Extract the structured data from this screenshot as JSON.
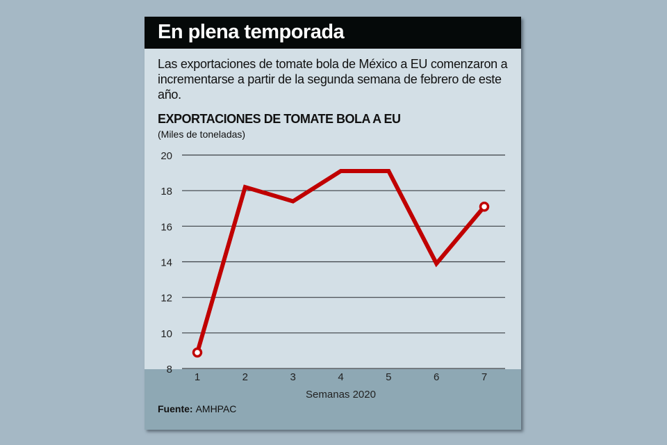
{
  "header": {
    "title": "En plena temporada",
    "description": "Las exportaciones de tomate bola de México a EU comenzaron a incrementarse a partir de la segunda semana de febrero de este año."
  },
  "chart_data": {
    "type": "line",
    "title": "EXPORTACIONES DE TOMATE BOLA A EU",
    "subtitle": "(Miles de toneladas)",
    "xlabel": "Semanas 2020",
    "ylabel": "",
    "categories": [
      "1",
      "2",
      "3",
      "4",
      "5",
      "6",
      "7"
    ],
    "values": [
      8.9,
      18.2,
      17.4,
      19.1,
      19.1,
      13.9,
      17.1
    ],
    "yticks": [
      8,
      10,
      12,
      14,
      16,
      18,
      20
    ],
    "ylim": [
      8,
      20
    ],
    "grid": true,
    "series_color": "#c00000",
    "markers_on": [
      "1",
      "7"
    ]
  },
  "footer": {
    "source_label": "Fuente:",
    "source_value": "AMHPAC"
  }
}
